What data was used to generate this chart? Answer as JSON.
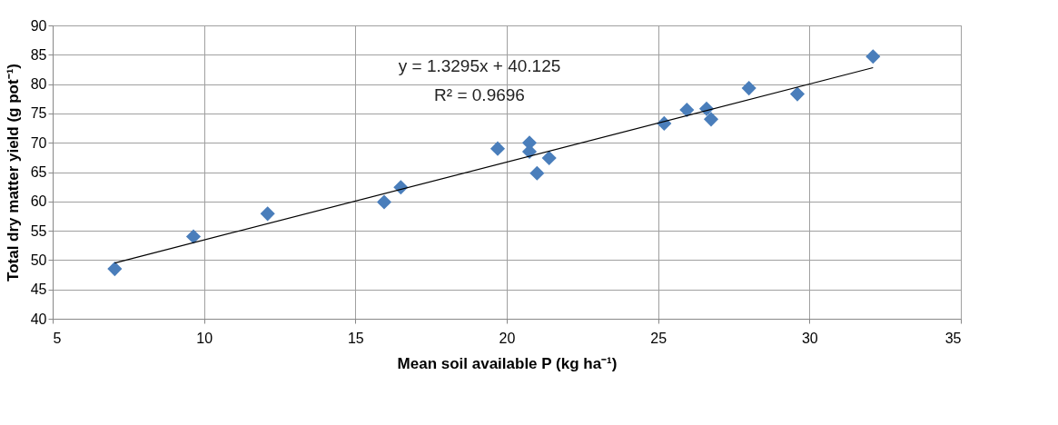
{
  "chart_data": {
    "type": "scatter",
    "xlabel": "Mean soil available P (kg ha⁻¹)",
    "ylabel": "Total dry matter yield (g pot⁻¹)",
    "xlim": [
      5,
      35
    ],
    "xticks": [
      5,
      10,
      15,
      20,
      25,
      30,
      35
    ],
    "ylim": [
      40,
      90
    ],
    "yticks": [
      40,
      45,
      50,
      55,
      60,
      65,
      70,
      75,
      80,
      85,
      90
    ],
    "grid": true,
    "marker": "diamond",
    "series": [
      {
        "color": "#4a7ebb",
        "x": [
          7.05,
          9.65,
          12.1,
          15.95,
          16.5,
          19.7,
          20.75,
          20.75,
          21.0,
          21.4,
          25.2,
          25.95,
          26.6,
          26.75,
          28.0,
          29.6,
          32.1
        ],
        "values": [
          48.5,
          54.0,
          57.9,
          59.9,
          62.4,
          69.0,
          70.0,
          68.5,
          64.8,
          67.4,
          73.3,
          75.6,
          75.8,
          74.0,
          79.3,
          78.3,
          84.7
        ]
      },
      {
        "type": "line",
        "marker": "none",
        "color": "#000000",
        "x": [
          7.05,
          32.1
        ],
        "values": [
          49.5,
          82.8
        ]
      }
    ],
    "annotations": [
      "y = 1.3295x + 40.125",
      "R² = 0.9696"
    ]
  }
}
